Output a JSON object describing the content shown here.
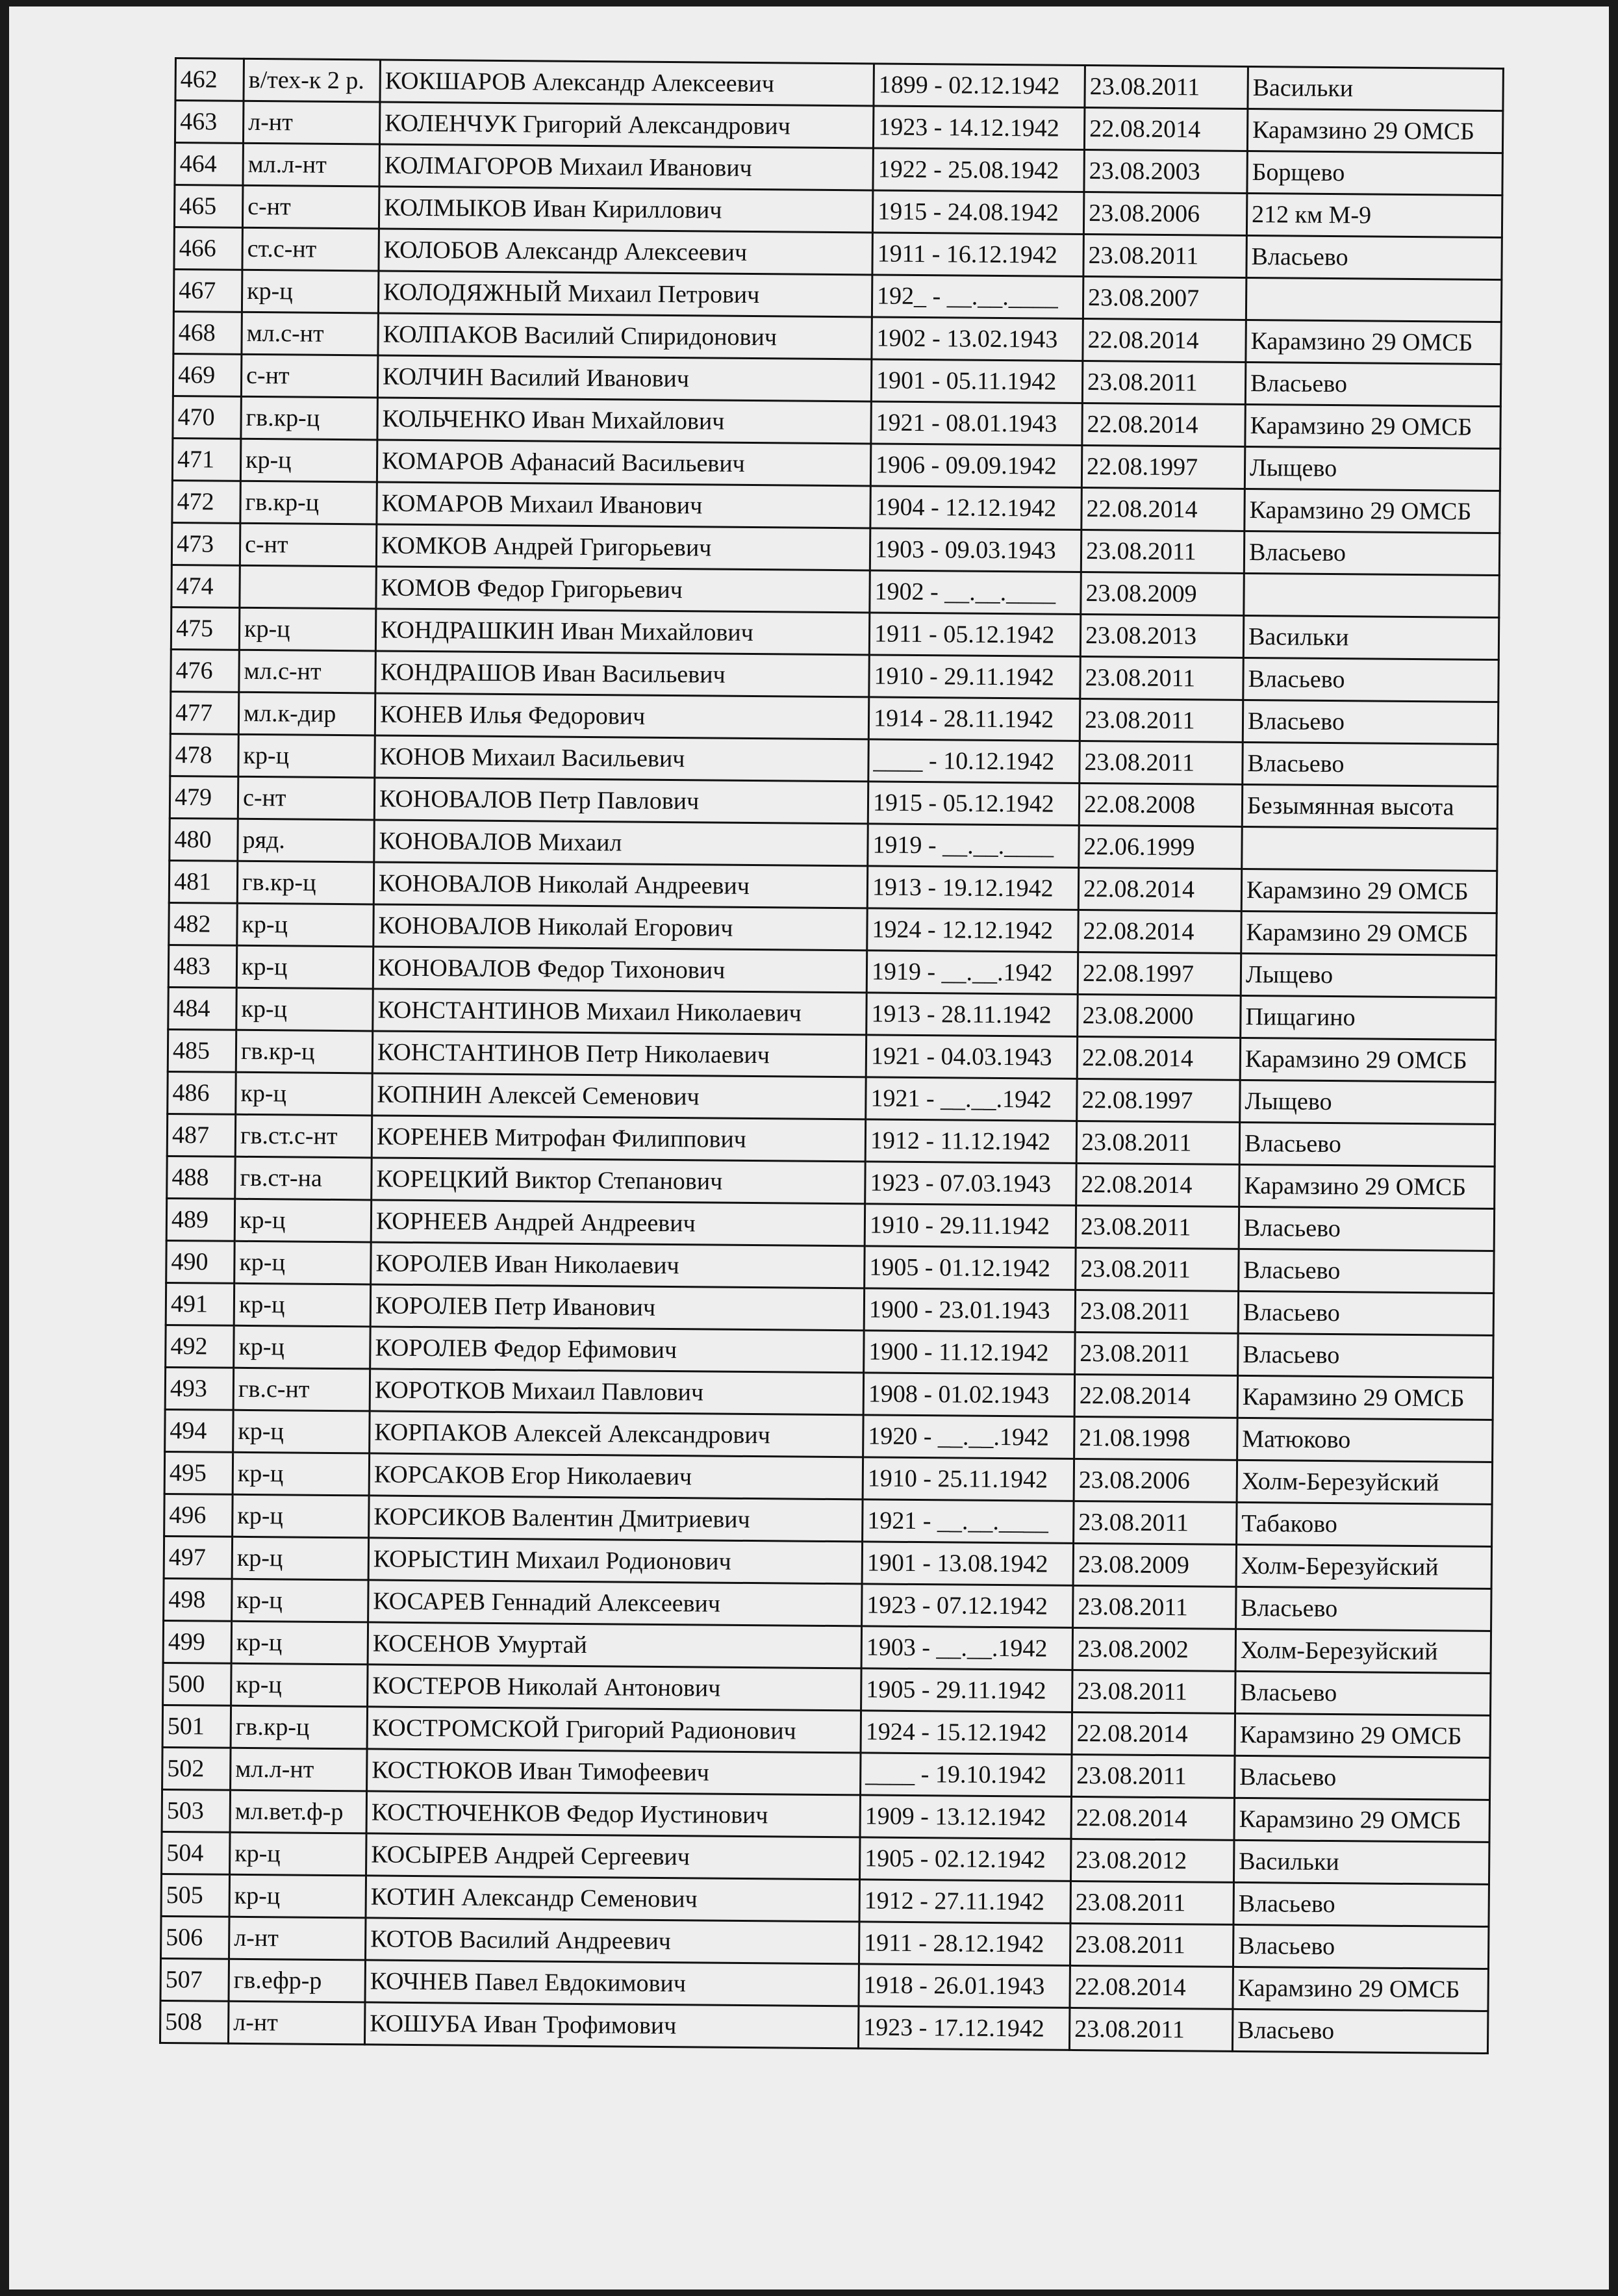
{
  "rows": [
    [
      "462",
      "в/тех-к 2 р.",
      "КОКШАРОВ Александр Алексеевич",
      "1899 - 02.12.1942",
      "23.08.2011",
      "Васильки"
    ],
    [
      "463",
      "л-нт",
      "КОЛЕНЧУК Григорий Александрович",
      "1923 - 14.12.1942",
      "22.08.2014",
      "Карамзино 29 ОМСБ"
    ],
    [
      "464",
      "мл.л-нт",
      "КОЛМАГОРОВ  Михаил  Иванович",
      "1922 - 25.08.1942",
      "23.08.2003",
      "Борщево"
    ],
    [
      "465",
      "с-нт",
      "КОЛМЫКОВ Иван Кириллович",
      "1915 - 24.08.1942",
      "23.08.2006",
      "212 км М-9"
    ],
    [
      "466",
      "ст.с-нт",
      "КОЛОБОВ Александр Алексеевич",
      "1911 - 16.12.1942",
      "23.08.2011",
      "Власьево"
    ],
    [
      "467",
      "кр-ц",
      "КОЛОДЯЖНЫЙ Михаил Петрович",
      "192_ - __.__.____",
      "23.08.2007",
      ""
    ],
    [
      "468",
      "мл.с-нт",
      "КОЛПАКОВ Василий Спиридонович",
      "1902 - 13.02.1943",
      "22.08.2014",
      "Карамзино 29 ОМСБ"
    ],
    [
      "469",
      "с-нт",
      "КОЛЧИН Василий  Иванович",
      "1901 - 05.11.1942",
      "23.08.2011",
      "Власьево"
    ],
    [
      "470",
      "гв.кр-ц",
      "КОЛЬЧЕНКО Иван Михайлович",
      "1921 - 08.01.1943",
      "22.08.2014",
      "Карамзино 29 ОМСБ"
    ],
    [
      "471",
      "кр-ц",
      "КОМАРОВ Афанасий Васильевич",
      "1906 - 09.09.1942",
      "22.08.1997",
      "Лыщево"
    ],
    [
      "472",
      "гв.кр-ц",
      "КОМАРОВ Михаил Иванович",
      "1904 - 12.12.1942",
      "22.08.2014",
      "Карамзино 29 ОМСБ"
    ],
    [
      "473",
      "с-нт",
      "КОМКОВ Андрей Григорьевич",
      "1903 - 09.03.1943",
      "23.08.2011",
      "Власьево"
    ],
    [
      "474",
      "",
      "КОМОВ  Федор Григорьевич",
      "1902 - __.__.____",
      "23.08.2009",
      ""
    ],
    [
      "475",
      "кр-ц",
      "КОНДРАШКИН Иван Михайлович",
      "1911 - 05.12.1942",
      "23.08.2013",
      "Васильки"
    ],
    [
      "476",
      "мл.с-нт",
      "КОНДРАШОВ Иван  Васильевич",
      "1910 - 29.11.1942",
      "23.08.2011",
      "Власьево"
    ],
    [
      "477",
      "мл.к-дир",
      "КОНЕВ Илья Федорович",
      "1914 - 28.11.1942",
      "23.08.2011",
      "Власьево"
    ],
    [
      "478",
      "кр-ц",
      "КОНОВ Михаил  Васильевич",
      "____ - 10.12.1942",
      "23.08.2011",
      "Власьево"
    ],
    [
      "479",
      "с-нт",
      "КОНОВАЛОВ  Петр Павлович",
      "1915 - 05.12.1942",
      "22.08.2008",
      "Безымянная высота"
    ],
    [
      "480",
      "ряд.",
      "КОНОВАЛОВ Михаил",
      "1919 - __.__.____",
      "22.06.1999",
      ""
    ],
    [
      "481",
      "гв.кр-ц",
      "КОНОВАЛОВ Николай Андреевич",
      "1913 - 19.12.1942",
      "22.08.2014",
      "Карамзино 29 ОМСБ"
    ],
    [
      "482",
      "кр-ц",
      "КОНОВАЛОВ Николай Егорович",
      "1924 - 12.12.1942",
      "22.08.2014",
      "Карамзино 29 ОМСБ"
    ],
    [
      "483",
      "кр-ц",
      "КОНОВАЛОВ Федор Тихонович",
      "1919 - __.__.1942",
      "22.08.1997",
      "Лыщево"
    ],
    [
      "484",
      "кр-ц",
      "КОНСТАНТИНОВ Михаил Николаевич",
      "1913 - 28.11.1942",
      "23.08.2000",
      "Пищагино"
    ],
    [
      "485",
      "гв.кр-ц",
      "КОНСТАНТИНОВ Петр Николаевич",
      "1921 - 04.03.1943",
      "22.08.2014",
      "Карамзино 29 ОМСБ"
    ],
    [
      "486",
      "кр-ц",
      "КОПНИН Алексей Семенович",
      "1921 - __.__.1942",
      "22.08.1997",
      "Лыщево"
    ],
    [
      "487",
      "гв.ст.с-нт",
      "КОРЕНЕВ Митрофан Филиппович",
      "1912 - 11.12.1942",
      "23.08.2011",
      "Власьево"
    ],
    [
      "488",
      "гв.ст-на",
      "КОРЕЦКИЙ Виктор Степанович",
      "1923 - 07.03.1943",
      "22.08.2014",
      "Карамзино 29 ОМСБ"
    ],
    [
      "489",
      "кр-ц",
      "КОРНЕЕВ Андрей Андреевич",
      "1910 - 29.11.1942",
      "23.08.2011",
      "Власьево"
    ],
    [
      "490",
      "кр-ц",
      "КОРОЛЕВ Иван Николаевич",
      "1905 - 01.12.1942",
      "23.08.2011",
      "Власьево"
    ],
    [
      "491",
      "кр-ц",
      "КОРОЛЕВ Петр Иванович",
      "1900 - 23.01.1943",
      "23.08.2011",
      "Власьево"
    ],
    [
      "492",
      "кр-ц",
      "КОРОЛЕВ Федор Ефимович",
      "1900 - 11.12.1942",
      "23.08.2011",
      "Власьево"
    ],
    [
      "493",
      "гв.с-нт",
      "КОРОТКОВ Михаил Павлович",
      "1908 - 01.02.1943",
      "22.08.2014",
      "Карамзино 29 ОМСБ"
    ],
    [
      "494",
      "кр-ц",
      "КОРПАКОВ  Алексей  Александрович",
      "1920 - __.__.1942",
      "21.08.1998",
      "Матюково"
    ],
    [
      "495",
      "кр-ц",
      "КОРСАКОВ Егор Николаевич",
      "1910 - 25.11.1942",
      "23.08.2006",
      "Холм-Березуйский"
    ],
    [
      "496",
      "кр-ц",
      "КОРСИКОВ Валентин Дмитриевич",
      "1921 - __.__.____",
      "23.08.2011",
      "Табаково"
    ],
    [
      "497",
      "кр-ц",
      "КОРЫСТИН Михаил Родионович",
      "1901 - 13.08.1942",
      "23.08.2009",
      "Холм-Березуйский"
    ],
    [
      "498",
      "кр-ц",
      "КОСАРЕВ Геннадий Алексеевич",
      "1923 - 07.12.1942",
      "23.08.2011",
      "Власьево"
    ],
    [
      "499",
      "кр-ц",
      "КОСЕНОВ Умуртай",
      "1903 - __.__.1942",
      "23.08.2002",
      "Холм-Березуйский"
    ],
    [
      "500",
      "кр-ц",
      "КОСТЕРОВ Николай Антонович",
      "1905 - 29.11.1942",
      "23.08.2011",
      "Власьево"
    ],
    [
      "501",
      "гв.кр-ц",
      "КОСТРОМСКОЙ Григорий Радионович",
      "1924 - 15.12.1942",
      "22.08.2014",
      "Карамзино 29 ОМСБ"
    ],
    [
      "502",
      "мл.л-нт",
      "КОСТЮКОВ Иван Тимофеевич",
      "____ - 19.10.1942",
      "23.08.2011",
      "Власьево"
    ],
    [
      "503",
      "мл.вет.ф-р",
      "КОСТЮЧЕНКОВ Федор Иустинович",
      "1909 - 13.12.1942",
      "22.08.2014",
      "Карамзино 29 ОМСБ"
    ],
    [
      "504",
      "кр-ц",
      "КОСЫРЕВ Андрей Сергеевич",
      "1905 - 02.12.1942",
      "23.08.2012",
      "Васильки"
    ],
    [
      "505",
      "кр-ц",
      "КОТИН Александр Семенович",
      "1912 - 27.11.1942",
      "23.08.2011",
      "Власьево"
    ],
    [
      "506",
      "л-нт",
      "КОТОВ Василий Андреевич",
      "1911 - 28.12.1942",
      "23.08.2011",
      "Власьево"
    ],
    [
      "507",
      "гв.ефр-р",
      "КОЧНЕВ Павел Евдокимович",
      "1918 - 26.01.1943",
      "22.08.2014",
      "Карамзино 29 ОМСБ"
    ],
    [
      "508",
      "л-нт",
      "КОШУБА Иван Трофимович",
      "1923 - 17.12.1942",
      "23.08.2011",
      "Власьево"
    ]
  ]
}
